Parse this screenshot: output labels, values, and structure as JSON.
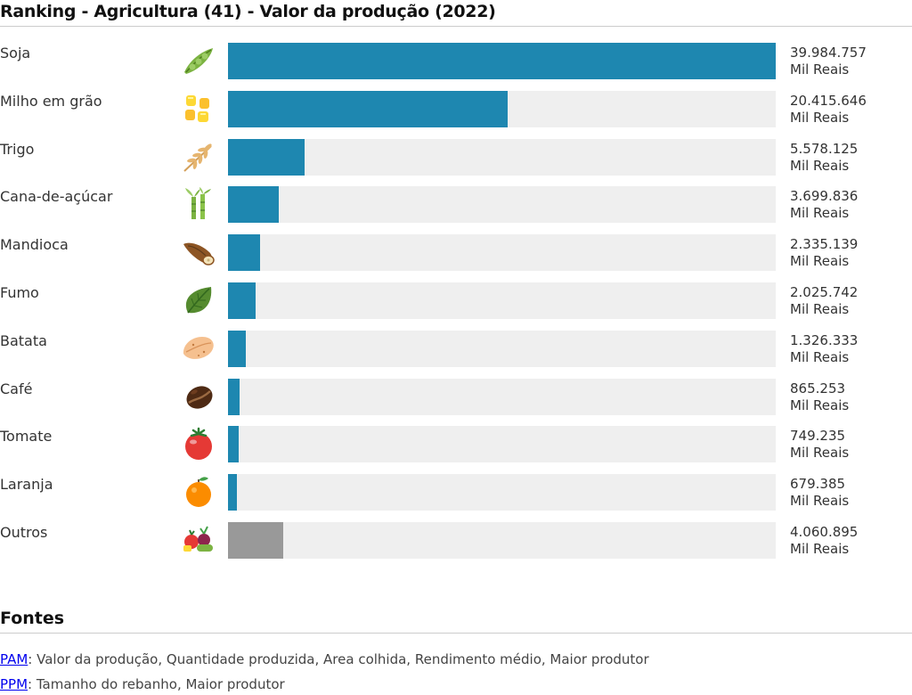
{
  "page": {
    "title": "Ranking - Agricultura (41) - Valor da produção (2022)"
  },
  "chart_data": {
    "type": "bar",
    "orientation": "horizontal",
    "title": "Ranking - Agricultura (41) - Valor da produção (2022)",
    "unit": "Mil Reais",
    "xlim": [
      0,
      39984757
    ],
    "categories": [
      "Soja",
      "Milho em grão",
      "Trigo",
      "Cana-de-açúcar",
      "Mandioca",
      "Fumo",
      "Batata",
      "Café",
      "Tomate",
      "Laranja",
      "Outros"
    ],
    "values": [
      39984757,
      20415646,
      5578125,
      3699836,
      2335139,
      2025742,
      1326333,
      865253,
      749235,
      679385,
      4060895
    ],
    "value_labels": [
      "39.984.757",
      "20.415.646",
      "5.578.125",
      "3.699.836",
      "2.335.139",
      "2.025.742",
      "1.326.333",
      "865.253",
      "749.235",
      "679.385",
      "4.060.895"
    ],
    "icons": [
      "soybean-icon",
      "corn-icon",
      "wheat-icon",
      "sugarcane-icon",
      "cassava-icon",
      "tobacco-leaf-icon",
      "potato-icon",
      "coffee-bean-icon",
      "tomato-icon",
      "orange-icon",
      "mixed-vegetables-icon"
    ],
    "colors": {
      "bar": "#1e87b0",
      "other_bar": "#999999",
      "track": "#efefef"
    }
  },
  "sources": {
    "title": "Fontes",
    "items": [
      {
        "link": "PAM",
        "text": ": Valor da produção, Quantidade produzida, Area colhida, Rendimento médio, Maior produtor"
      },
      {
        "link": "PPM",
        "text": ": Tamanho do rebanho, Maior produtor"
      }
    ]
  }
}
